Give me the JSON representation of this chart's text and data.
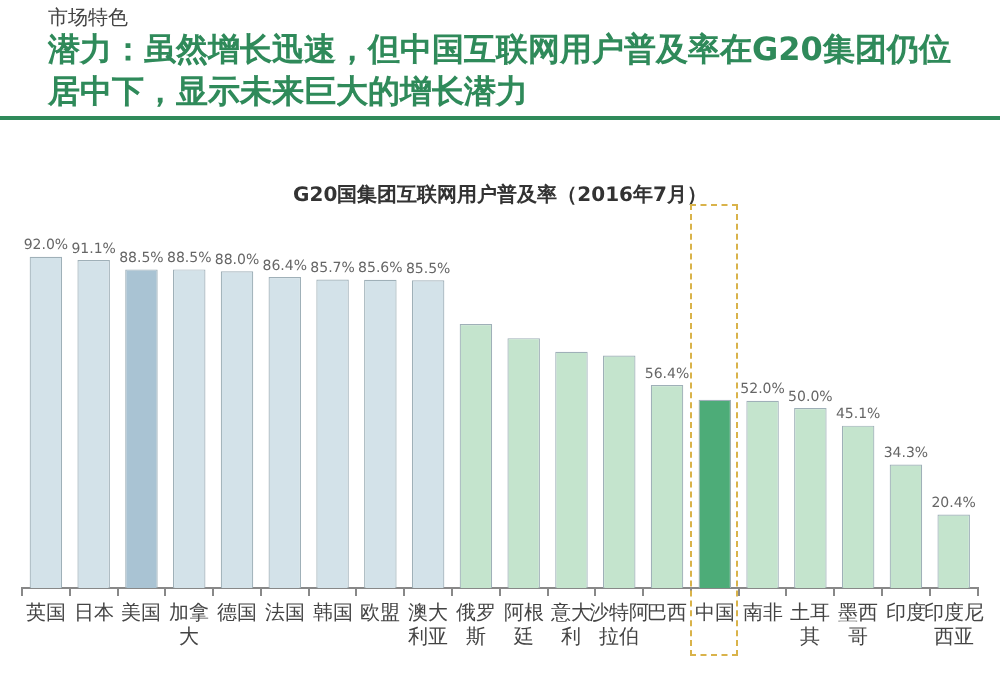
{
  "chart_data": {
    "type": "bar",
    "title": "潜力：虽然增长迅速，但中国互联网用户普及率在G20集团仍位居中下，显示未来巨大的增长潜力",
    "subtitle": "G20国集团互联网用户普及率（2016年7月）",
    "annotations": [
      "市场特色"
    ],
    "categories": [
      "英国",
      "日本",
      "美国",
      "加拿大",
      "德国",
      "法国",
      "韩国",
      "欧盟",
      "澳大利亚",
      "俄罗斯",
      "阿根廷",
      "意大利",
      "沙特阿拉伯",
      "巴西",
      "中国",
      "南非",
      "土耳其",
      "墨西哥",
      "印度",
      "印度尼西亚"
    ],
    "values": [
      92.0,
      91.1,
      88.5,
      88.5,
      88.0,
      86.4,
      85.7,
      85.6,
      85.5,
      73.3,
      69.4,
      65.6,
      64.6,
      56.4,
      52.3,
      52.0,
      50.0,
      45.1,
      34.3,
      20.4
    ],
    "value_labels": [
      "92.0%",
      "91.1%",
      "88.5%",
      "88.5%",
      "88.0%",
      "86.4%",
      "85.7%",
      "85.6%",
      "85.5%",
      null,
      null,
      null,
      null,
      "56.4%",
      null,
      "52.0%",
      "50.0%",
      "45.1%",
      "34.3%",
      "20.4%"
    ],
    "colors": [
      "#d3e2e9",
      "#d3e2e9",
      "#a9c3d3",
      "#d3e2e9",
      "#d3e2e9",
      "#d3e2e9",
      "#d3e2e9",
      "#d3e2e9",
      "#d3e2e9",
      "#c4e4cd",
      "#c4e4cd",
      "#c4e4cd",
      "#c4e4cd",
      "#c4e4cd",
      "#4dac78",
      "#c4e4cd",
      "#c4e4cd",
      "#c4e4cd",
      "#c4e4cd",
      "#c4e4cd"
    ],
    "legend": false
  }
}
